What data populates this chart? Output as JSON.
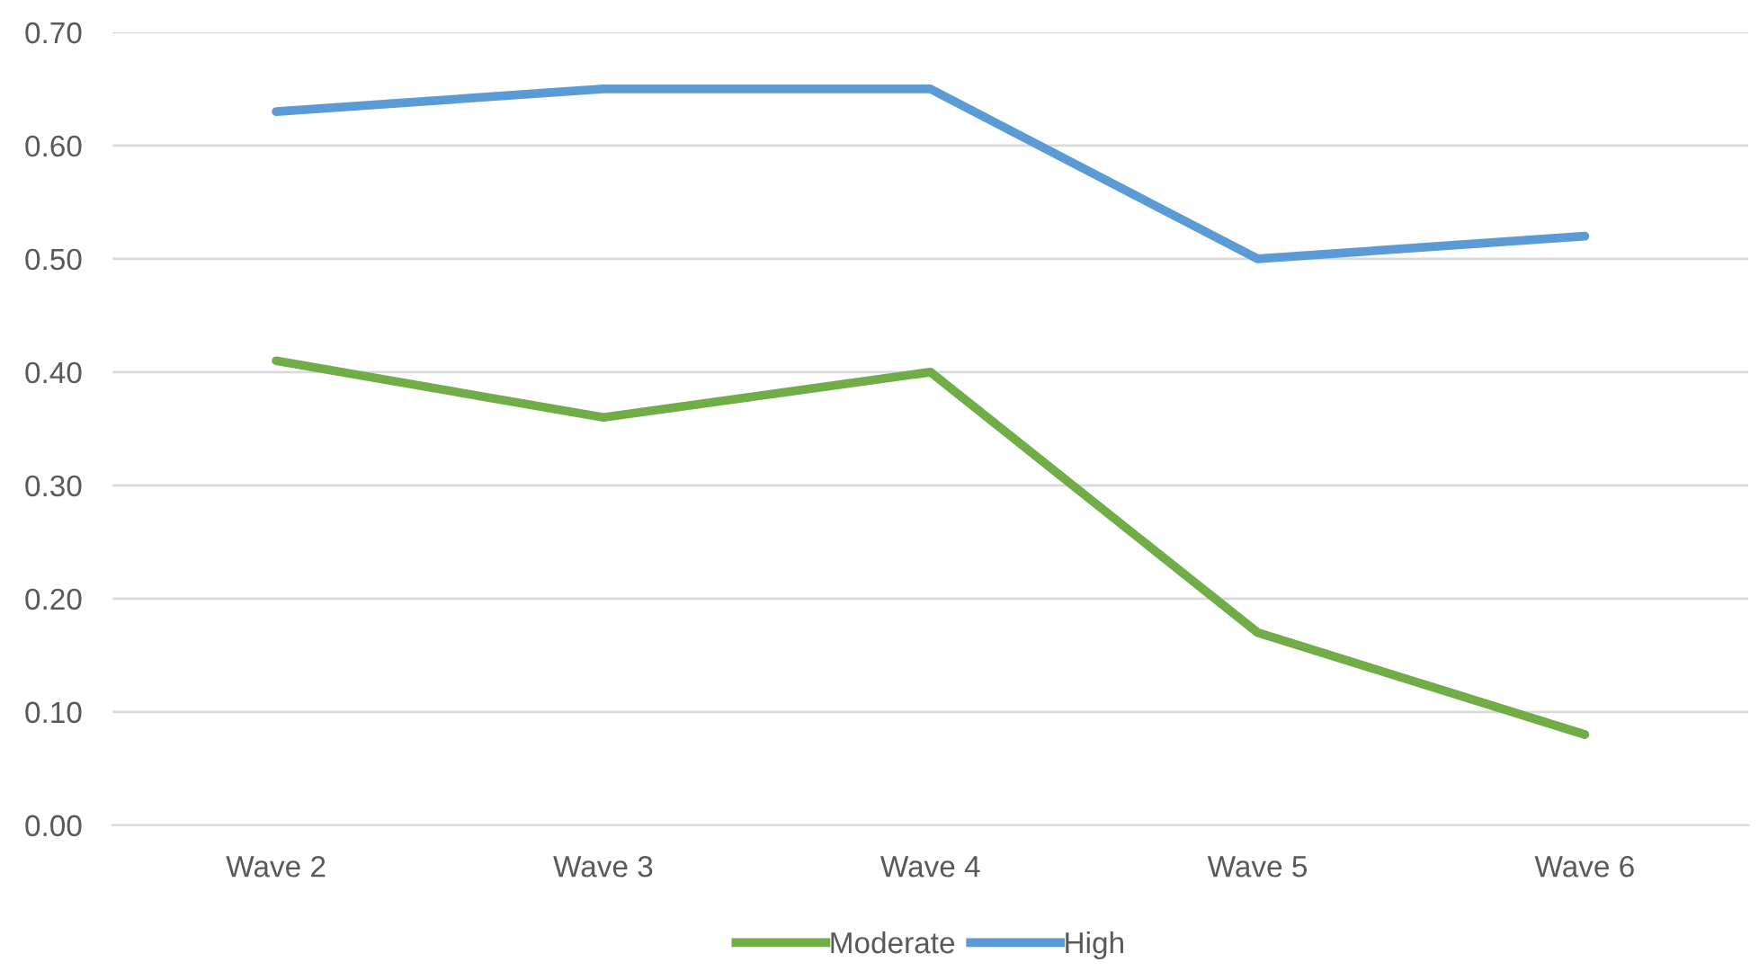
{
  "chart_data": {
    "type": "line",
    "categories": [
      "Wave 2",
      "Wave 3",
      "Wave 4",
      "Wave 5",
      "Wave 6"
    ],
    "series": [
      {
        "name": "Moderate",
        "color": "#70ad47",
        "values": [
          0.41,
          0.36,
          0.4,
          0.17,
          0.08
        ]
      },
      {
        "name": "High",
        "color": "#5b9bd5",
        "values": [
          0.63,
          0.65,
          0.65,
          0.5,
          0.52
        ]
      }
    ],
    "ylim": [
      0,
      0.7
    ],
    "yticks": [
      {
        "value": 0,
        "label": "0.00"
      },
      {
        "value": 0.1,
        "label": "0.10"
      },
      {
        "value": 0.2,
        "label": "0.20"
      },
      {
        "value": 0.3,
        "label": "0.30"
      },
      {
        "value": 0.4,
        "label": "0.40"
      },
      {
        "value": 0.5,
        "label": "0.50"
      },
      {
        "value": 0.6,
        "label": "0.60"
      },
      {
        "value": 0.7,
        "label": "0.70"
      }
    ],
    "grid": "y",
    "legend": "bottom",
    "marker": "none",
    "line_style": "solid"
  }
}
